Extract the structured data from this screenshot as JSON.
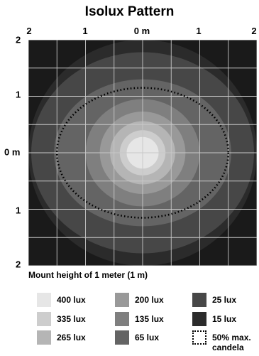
{
  "chart_data": {
    "type": "heatmap",
    "title": "Isolux Pattern",
    "top_ticks": [
      "2",
      "1",
      "0 m",
      "1",
      "2"
    ],
    "left_ticks": [
      "2",
      "1",
      "0 m",
      "1",
      "2"
    ],
    "caption": "Mount height of 1 meter (1 m)",
    "x_range": [
      -2,
      2
    ],
    "y_range": [
      -2,
      2
    ],
    "grid": true,
    "contours": [
      {
        "label": "15 lux",
        "lux": 15,
        "color": "#2b2b2b",
        "rx": 2.0,
        "ry": 2.0
      },
      {
        "label": "25 lux",
        "lux": 25,
        "color": "#474747",
        "rx": 1.95,
        "ry": 1.78
      },
      {
        "label": "65 lux",
        "lux": 65,
        "color": "#646464",
        "rx": 1.55,
        "ry": 1.3
      },
      {
        "label": "135 lux",
        "lux": 135,
        "color": "#7f7f7f",
        "rx": 1.0,
        "ry": 0.95
      },
      {
        "label": "200 lux",
        "lux": 200,
        "color": "#999999",
        "rx": 0.75,
        "ry": 0.73
      },
      {
        "label": "265 lux",
        "lux": 265,
        "color": "#b5b5b5",
        "rx": 0.57,
        "ry": 0.56
      },
      {
        "label": "335 lux",
        "lux": 335,
        "color": "#cdcdcd",
        "rx": 0.4,
        "ry": 0.4
      },
      {
        "label": "400 lux",
        "lux": 400,
        "color": "#e6e6e6",
        "rx": 0.28,
        "ry": 0.28
      }
    ],
    "candela_50pct": {
      "label": "50% max. candela",
      "rx": 1.5,
      "ry": 1.15
    }
  },
  "legend": [
    {
      "label": "400 lux",
      "color": "#e6e6e6"
    },
    {
      "label": "200 lux",
      "color": "#999999"
    },
    {
      "label": "25 lux",
      "color": "#474747"
    },
    {
      "label": "335 lux",
      "color": "#cdcdcd"
    },
    {
      "label": "135 lux",
      "color": "#7f7f7f"
    },
    {
      "label": "15 lux",
      "color": "#2b2b2b"
    },
    {
      "label": "265 lux",
      "color": "#b5b5b5"
    },
    {
      "label": "65 lux",
      "color": "#646464"
    },
    {
      "label": "50% max. candela",
      "style": "dotted"
    }
  ]
}
